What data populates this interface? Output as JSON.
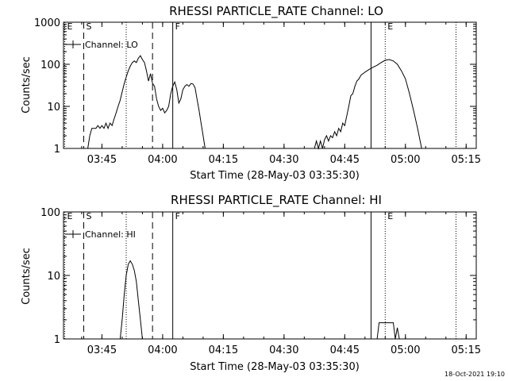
{
  "footer": {
    "timestamp": "18-Oct-2021 19:10"
  },
  "chart_data": [
    {
      "type": "line",
      "title": "RHESSI PARTICLE_RATE Channel: LO",
      "xlabel": "Start Time (28-May-03 03:35:30)",
      "ylabel": "Counts/sec",
      "xscale": "time",
      "yscale": "log",
      "xlim": [
        "03:35:30",
        "05:17:30"
      ],
      "ylim": [
        1,
        1000
      ],
      "x_ticks": [
        "03:45",
        "04:00",
        "04:15",
        "04:30",
        "04:45",
        "05:00",
        "05:15"
      ],
      "y_ticks": [
        "1",
        "10",
        "100",
        "1000"
      ],
      "legend": {
        "placement": "top-left",
        "entries": [
          "Channel: LO"
        ]
      },
      "markers": [
        {
          "label": "E",
          "time": "03:35:48",
          "style": "dotted"
        },
        {
          "label": "S",
          "time": "03:40:30",
          "style": "dashed"
        },
        {
          "label": "",
          "time": "03:51:00",
          "style": "dotted"
        },
        {
          "label": "",
          "time": "03:57:30",
          "style": "dashed"
        },
        {
          "label": "F",
          "time": "04:02:30",
          "style": "solid"
        },
        {
          "label": "",
          "time": "04:51:30",
          "style": "solid"
        },
        {
          "label": "E",
          "time": "04:55:00",
          "style": "dotted"
        },
        {
          "label": "",
          "time": "05:12:30",
          "style": "dotted"
        }
      ],
      "series": [
        {
          "name": "Channel: LO",
          "segments": [
            [
              [
                "03:41:30",
                1
              ],
              [
                "03:42:00",
                2
              ],
              [
                "03:42:30",
                3
              ],
              [
                "03:43:30",
                3
              ],
              [
                "03:44:00",
                3.5
              ],
              [
                "03:44:30",
                3
              ],
              [
                "03:45:00",
                3.5
              ],
              [
                "03:45:30",
                3
              ],
              [
                "03:46:00",
                4
              ],
              [
                "03:46:30",
                3
              ],
              [
                "03:47:00",
                4
              ],
              [
                "03:47:30",
                3.5
              ],
              [
                "03:48:00",
                5
              ],
              [
                "03:48:30",
                7
              ],
              [
                "03:49:00",
                10
              ],
              [
                "03:49:30",
                14
              ],
              [
                "03:50:00",
                22
              ],
              [
                "03:50:30",
                35
              ],
              [
                "03:51:00",
                50
              ],
              [
                "03:51:30",
                70
              ],
              [
                "03:52:00",
                90
              ],
              [
                "03:52:30",
                110
              ],
              [
                "03:53:00",
                120
              ],
              [
                "03:53:30",
                110
              ],
              [
                "03:54:00",
                140
              ],
              [
                "03:54:30",
                160
              ],
              [
                "03:55:00",
                130
              ],
              [
                "03:55:30",
                110
              ],
              [
                "03:56:00",
                70
              ],
              [
                "03:56:30",
                40
              ],
              [
                "03:57:00",
                60
              ],
              [
                "03:57:30",
                35
              ],
              [
                "03:58:00",
                30
              ],
              [
                "03:58:30",
                15
              ],
              [
                "03:59:00",
                10
              ],
              [
                "03:59:30",
                8
              ],
              [
                "04:00:00",
                9
              ],
              [
                "04:00:30",
                7
              ],
              [
                "04:01:00",
                8
              ],
              [
                "04:01:30",
                10
              ],
              [
                "04:02:00",
                20
              ],
              [
                "04:02:30",
                30
              ],
              [
                "04:03:00",
                38
              ],
              [
                "04:03:30",
                25
              ],
              [
                "04:04:00",
                12
              ],
              [
                "04:04:30",
                15
              ],
              [
                "04:05:00",
                25
              ],
              [
                "04:05:30",
                30
              ],
              [
                "04:06:00",
                33
              ],
              [
                "04:06:30",
                30
              ],
              [
                "04:07:00",
                35
              ],
              [
                "04:07:30",
                34
              ],
              [
                "04:08:00",
                28
              ],
              [
                "04:08:30",
                15
              ],
              [
                "04:09:00",
                8
              ],
              [
                "04:09:30",
                4
              ],
              [
                "04:10:00",
                2
              ],
              [
                "04:10:30",
                1
              ]
            ],
            [
              [
                "04:37:30",
                1
              ],
              [
                "04:38:00",
                1.5
              ],
              [
                "04:38:30",
                1
              ],
              [
                "04:39:00",
                1.5
              ],
              [
                "04:39:30",
                1
              ],
              [
                "04:40:00",
                1.6
              ],
              [
                "04:40:30",
                2
              ],
              [
                "04:41:00",
                1.5
              ],
              [
                "04:41:30",
                2
              ],
              [
                "04:42:00",
                1.8
              ],
              [
                "04:42:30",
                2.5
              ],
              [
                "04:43:00",
                2
              ],
              [
                "04:43:30",
                3
              ],
              [
                "04:44:00",
                2.5
              ],
              [
                "04:44:30",
                4
              ],
              [
                "04:45:00",
                3.5
              ],
              [
                "04:45:30",
                6
              ],
              [
                "04:46:00",
                10
              ],
              [
                "04:46:30",
                18
              ],
              [
                "04:47:00",
                20
              ],
              [
                "04:47:30",
                30
              ],
              [
                "04:48:00",
                40
              ],
              [
                "04:48:30",
                45
              ],
              [
                "04:49:00",
                55
              ],
              [
                "04:50:00",
                65
              ],
              [
                "04:51:00",
                75
              ],
              [
                "04:52:00",
                85
              ],
              [
                "04:53:00",
                95
              ],
              [
                "04:54:00",
                110
              ],
              [
                "04:55:00",
                125
              ],
              [
                "04:56:00",
                130
              ],
              [
                "04:57:00",
                120
              ],
              [
                "04:58:00",
                100
              ],
              [
                "04:59:00",
                70
              ],
              [
                "05:00:00",
                45
              ],
              [
                "05:01:00",
                20
              ],
              [
                "05:02:00",
                8
              ],
              [
                "05:03:00",
                3
              ],
              [
                "05:04:00",
                1
              ]
            ]
          ]
        }
      ]
    },
    {
      "type": "line",
      "title": "RHESSI PARTICLE_RATE Channel: HI",
      "xlabel": "Start Time (28-May-03 03:35:30)",
      "ylabel": "Counts/sec",
      "xscale": "time",
      "yscale": "log",
      "xlim": [
        "03:35:30",
        "05:17:30"
      ],
      "ylim": [
        1,
        100
      ],
      "x_ticks": [
        "03:45",
        "04:00",
        "04:15",
        "04:30",
        "04:45",
        "05:00",
        "05:15"
      ],
      "y_ticks": [
        "1",
        "10",
        "100"
      ],
      "legend": {
        "placement": "top-left",
        "entries": [
          "Channel: HI"
        ]
      },
      "markers": [
        {
          "label": "E",
          "time": "03:35:48",
          "style": "dotted"
        },
        {
          "label": "S",
          "time": "03:40:30",
          "style": "dashed"
        },
        {
          "label": "",
          "time": "03:51:00",
          "style": "dotted"
        },
        {
          "label": "",
          "time": "03:57:30",
          "style": "dashed"
        },
        {
          "label": "F",
          "time": "04:02:30",
          "style": "solid"
        },
        {
          "label": "",
          "time": "04:51:30",
          "style": "solid"
        },
        {
          "label": "E",
          "time": "04:55:00",
          "style": "dotted"
        },
        {
          "label": "",
          "time": "05:12:30",
          "style": "dotted"
        }
      ],
      "series": [
        {
          "name": "Channel: HI",
          "segments": [
            [
              [
                "03:49:30",
                1
              ],
              [
                "03:50:00",
                2
              ],
              [
                "03:50:30",
                5
              ],
              [
                "03:51:00",
                10
              ],
              [
                "03:51:30",
                15
              ],
              [
                "03:52:00",
                17
              ],
              [
                "03:52:30",
                15
              ],
              [
                "03:53:00",
                12
              ],
              [
                "03:53:30",
                8
              ],
              [
                "03:54:00",
                4
              ],
              [
                "03:54:30",
                2
              ],
              [
                "03:55:00",
                1
              ]
            ],
            [
              [
                "04:53:00",
                1
              ],
              [
                "04:53:30",
                1.8
              ],
              [
                "04:57:00",
                1.8
              ],
              [
                "04:57:30",
                1
              ],
              [
                "04:58:00",
                1.5
              ],
              [
                "04:58:30",
                1
              ]
            ]
          ]
        }
      ]
    }
  ]
}
